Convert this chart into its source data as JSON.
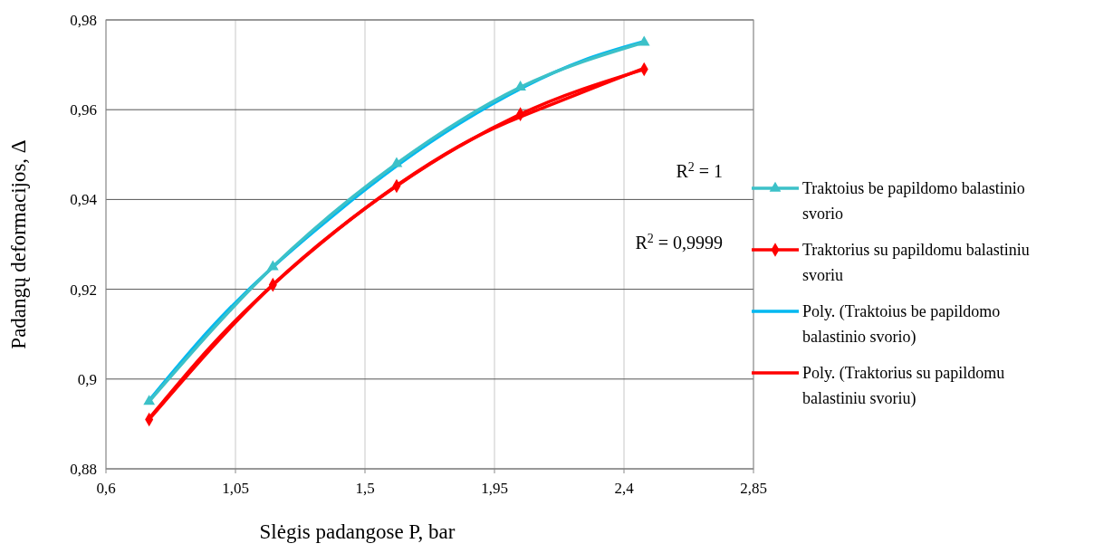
{
  "chart_data": {
    "type": "line",
    "xlabel": "Slėgis padangose P, bar",
    "ylabel": "Padangų deformacijos, Δ",
    "xlim": [
      0.6,
      2.85
    ],
    "xticks": [
      {
        "value": 0.6,
        "label": "0,6"
      },
      {
        "value": 1.05,
        "label": "1,05"
      },
      {
        "value": 1.5,
        "label": "1,5"
      },
      {
        "value": 1.95,
        "label": "1,95"
      },
      {
        "value": 2.4,
        "label": "2,4"
      },
      {
        "value": 2.85,
        "label": "2,85"
      }
    ],
    "ylim": [
      0.88,
      0.98
    ],
    "yticks": [
      {
        "value": 0.88,
        "label": "0,88"
      },
      {
        "value": 0.9,
        "label": "0,9"
      },
      {
        "value": 0.92,
        "label": "0,92"
      },
      {
        "value": 0.94,
        "label": "0,94"
      },
      {
        "value": 0.96,
        "label": "0,96"
      },
      {
        "value": 0.98,
        "label": "0,98"
      }
    ],
    "grid": true,
    "legend": "right",
    "annotations": [
      "R$^{2}$ = 1",
      "R$^{2}$ = 0,9999"
    ],
    "series": [
      {
        "name": "Traktoius be papildomo balastinio svorio",
        "color": "#3cc1c8",
        "marker": "triangle",
        "x": [
          0.75,
          1.18,
          1.61,
          2.04,
          2.47
        ],
        "values": [
          0.895,
          0.925,
          0.948,
          0.965,
          0.975
        ]
      },
      {
        "name": "Traktorius su papildomu balastiniu svoriu",
        "color": "#ff0000",
        "marker": "diamond",
        "x": [
          0.75,
          1.18,
          1.61,
          2.04,
          2.47
        ],
        "values": [
          0.891,
          0.921,
          0.943,
          0.959,
          0.969
        ]
      },
      {
        "name": "Poly. (Traktoius be papildomo balastinio svorio)",
        "color": "#00b8f0",
        "marker": "none",
        "x": [
          0.76,
          0.96,
          1.4,
          1.83,
          2.26,
          2.46
        ],
        "values": [
          0.896,
          0.911,
          0.937,
          0.957,
          0.971,
          0.975
        ]
      },
      {
        "name": "Poly. (Traktorius su papildomu balastiniu svoriu)",
        "color": "#ff0000",
        "marker": "none",
        "x": [
          0.76,
          0.96,
          1.4,
          1.83,
          2.26,
          2.46
        ],
        "values": [
          0.892,
          0.907,
          0.933,
          0.952,
          0.964,
          0.969
        ]
      }
    ]
  }
}
